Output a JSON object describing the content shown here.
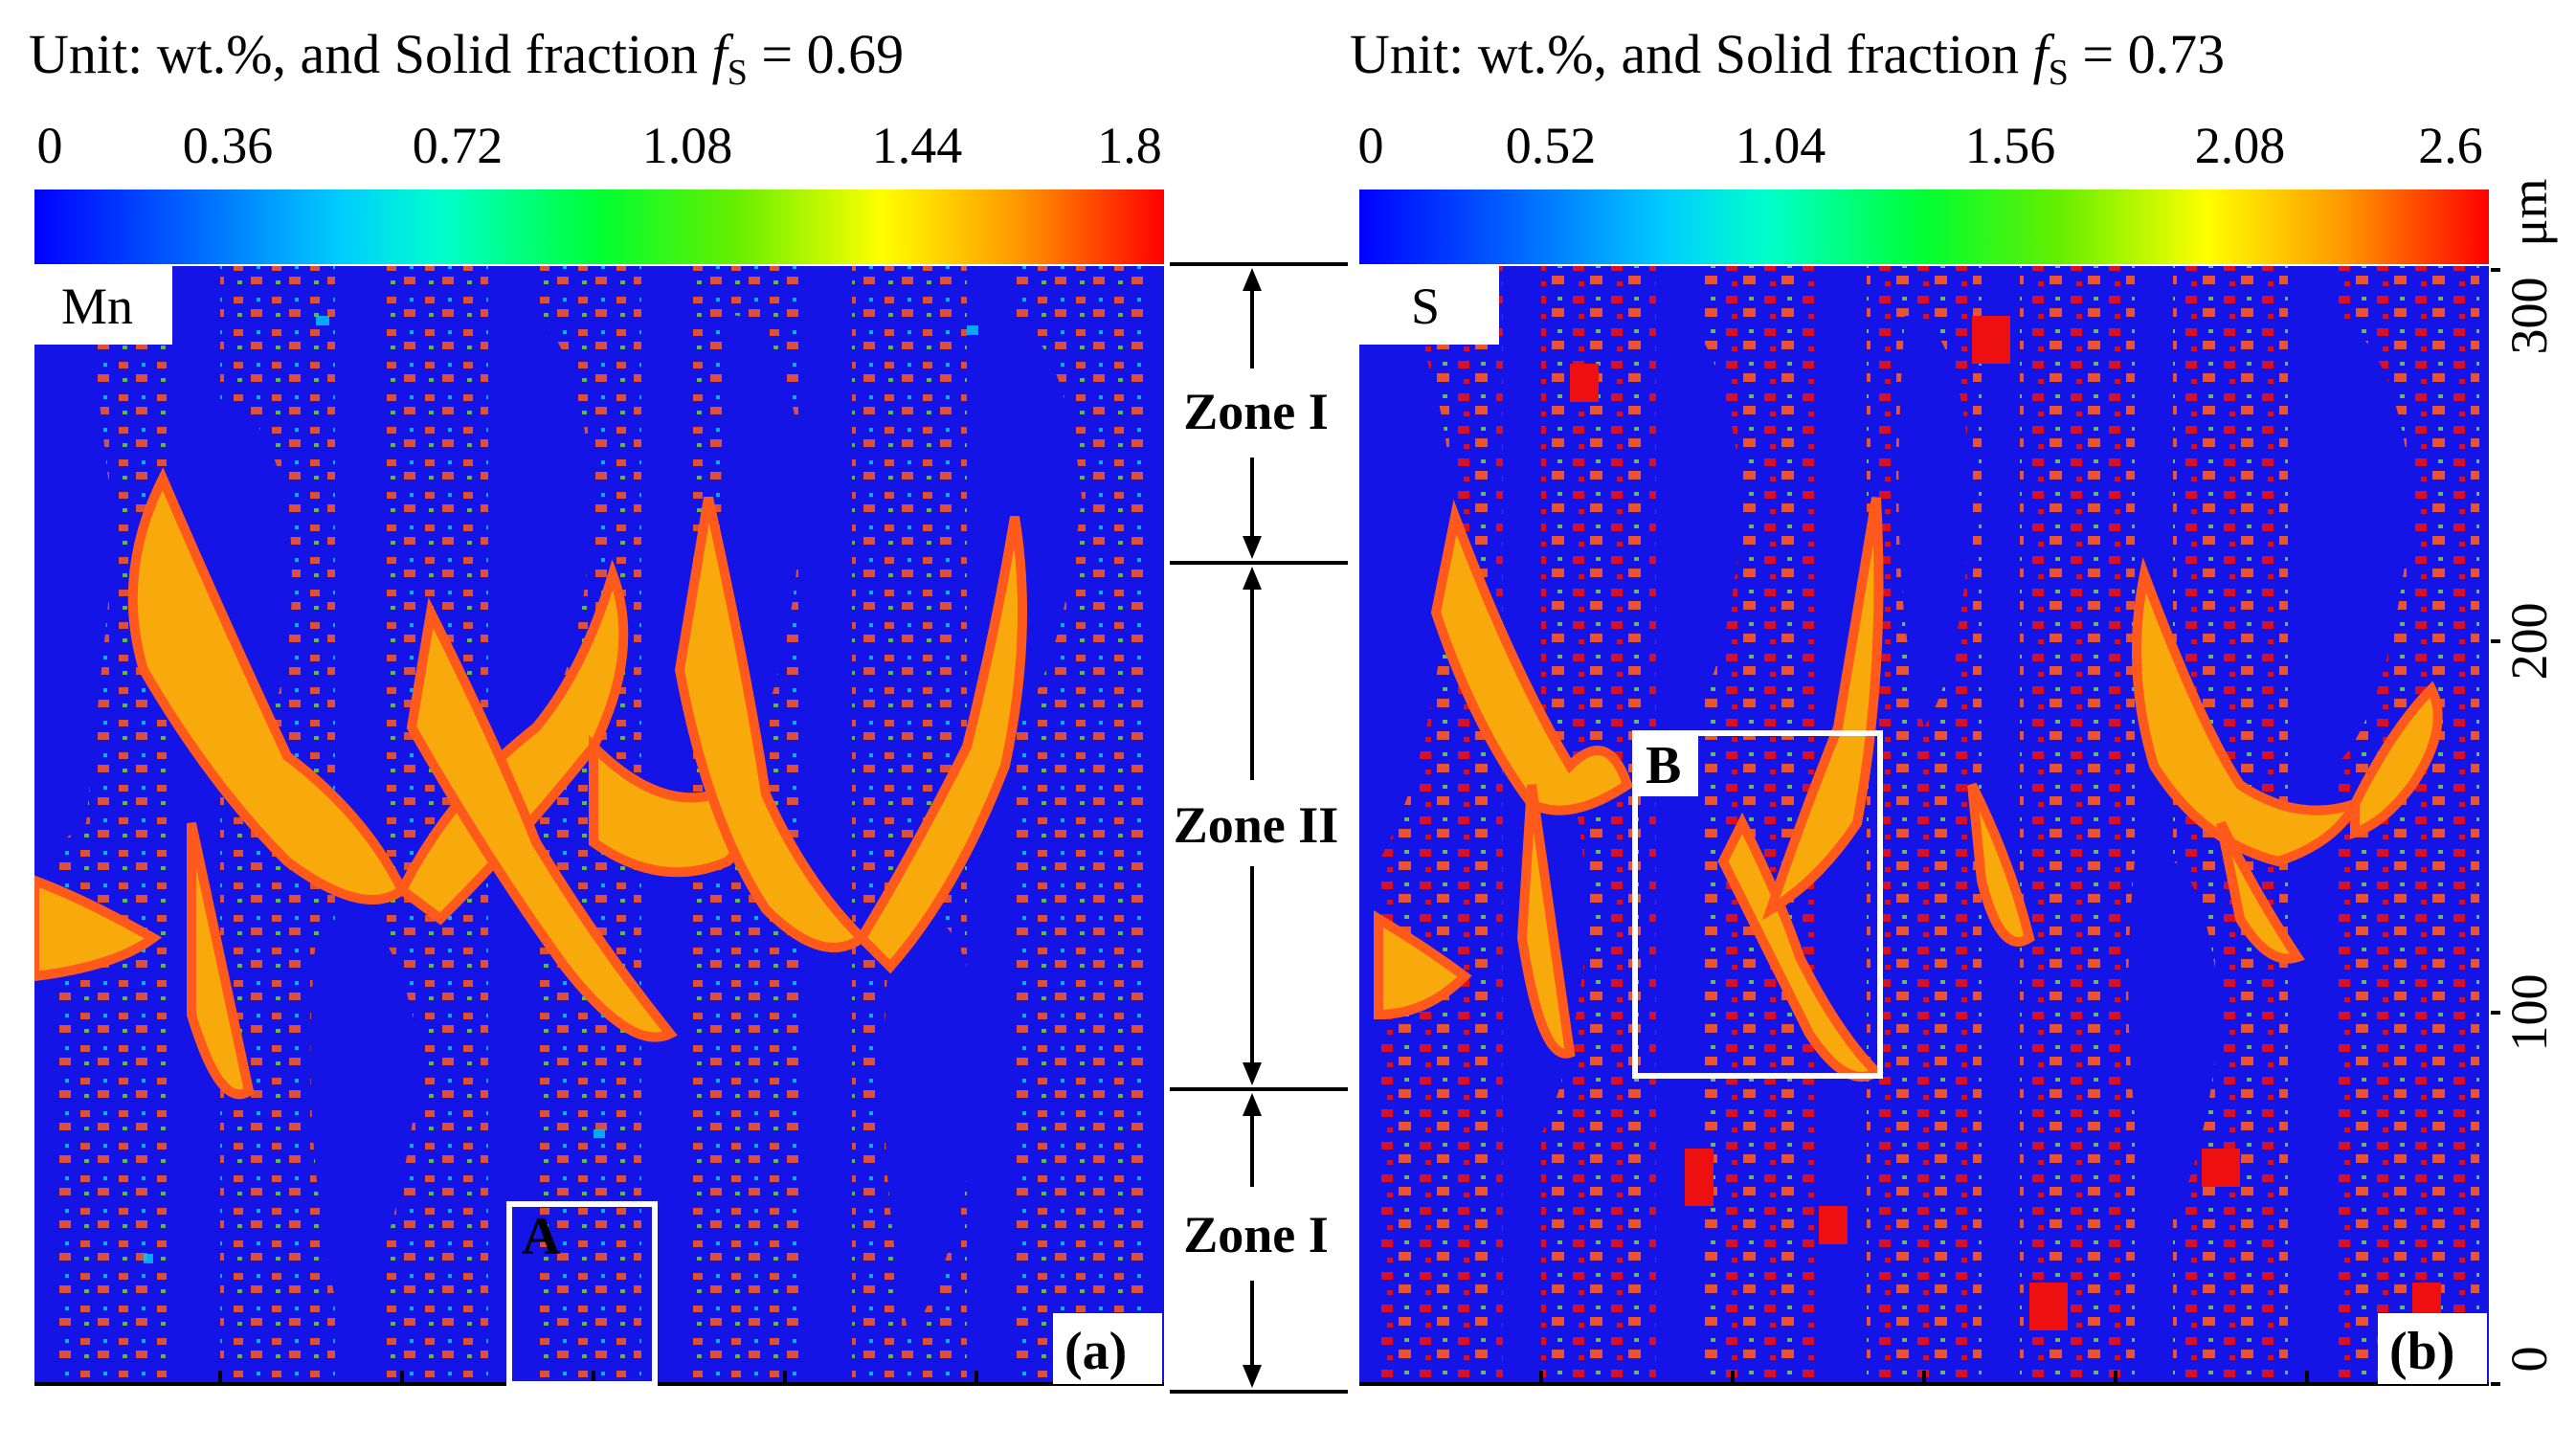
{
  "panels": [
    {
      "id": "a",
      "title": {
        "prefix": "Unit: wt.%, and Solid fraction ",
        "f": "f",
        "sub": "S",
        "suffix": " = 0.69"
      },
      "scale_ticks": [
        "0",
        "0.36",
        "0.72",
        "1.08",
        "1.44",
        "1.8"
      ],
      "element": "Mn",
      "panel_label": "(a)",
      "roi_label": "A"
    },
    {
      "id": "b",
      "title": {
        "prefix": "Unit: wt.%, and Solid fraction ",
        "f": "f",
        "sub": "S",
        "suffix": " = 0.73"
      },
      "scale_ticks": [
        "0",
        "0.52",
        "1.04",
        "1.56",
        "2.08",
        "2.6"
      ],
      "element": "S",
      "panel_label": "(b)",
      "roi_label": "B"
    }
  ],
  "zones": [
    "Zone I",
    "Zone II",
    "Zone I"
  ],
  "axis": {
    "unit": "μm",
    "ticks": [
      "0",
      "100",
      "200",
      "300"
    ],
    "max": 300
  },
  "colors": {
    "matrix": "#1414e6",
    "core": "#f8a90c",
    "rich": "#ff5a1c",
    "peak": "#ee1010",
    "edge": "#6ed23a",
    "scale": [
      "#0000ff",
      "#00aaff",
      "#00ffff",
      "#00ff55",
      "#44dd00",
      "#aaee00",
      "#ffff00",
      "#ff9900",
      "#ff0000"
    ]
  }
}
